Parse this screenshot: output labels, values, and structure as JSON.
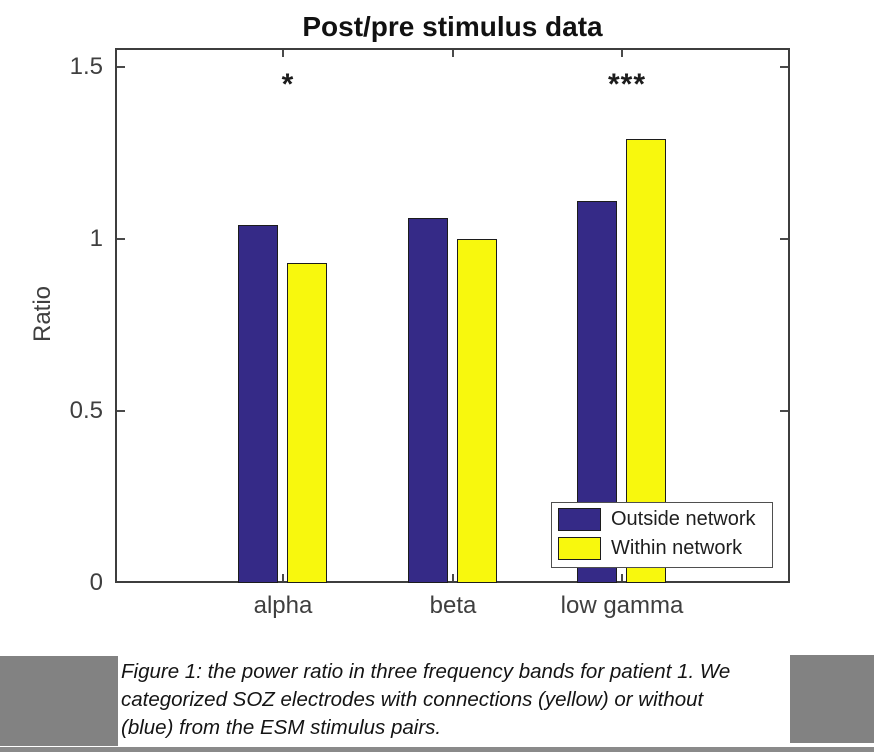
{
  "page": {
    "background": "#ffffff",
    "gray_block_color": "#828282"
  },
  "chart_data": {
    "type": "bar",
    "title": "Post/pre stimulus data",
    "xlabel": "",
    "ylabel": "Ratio",
    "categories": [
      "alpha",
      "beta",
      "low gamma"
    ],
    "series": [
      {
        "name": "Outside network",
        "color": "#352A87",
        "values": [
          1.04,
          1.06,
          1.11
        ]
      },
      {
        "name": "Within network",
        "color": "#F8F80D",
        "values": [
          0.93,
          1.0,
          1.29
        ]
      }
    ],
    "significance_markers": [
      {
        "category": "alpha",
        "marker": "*"
      },
      {
        "category": "low gamma",
        "marker": "***"
      }
    ],
    "yticks": [
      0,
      0.5,
      1,
      1.5
    ],
    "ylim": [
      0,
      1.55
    ],
    "grid": false,
    "legend_position": "inside-bottom-right",
    "bar_edge_color": "#1c1c1c"
  },
  "figure": {
    "caption": {
      "lines": [
        "Figure 1: the power ratio in three frequency bands for patient 1. We",
        "categorized SOZ electrodes with connections (yellow) or without",
        "(blue) from the ESM stimulus pairs."
      ]
    }
  }
}
